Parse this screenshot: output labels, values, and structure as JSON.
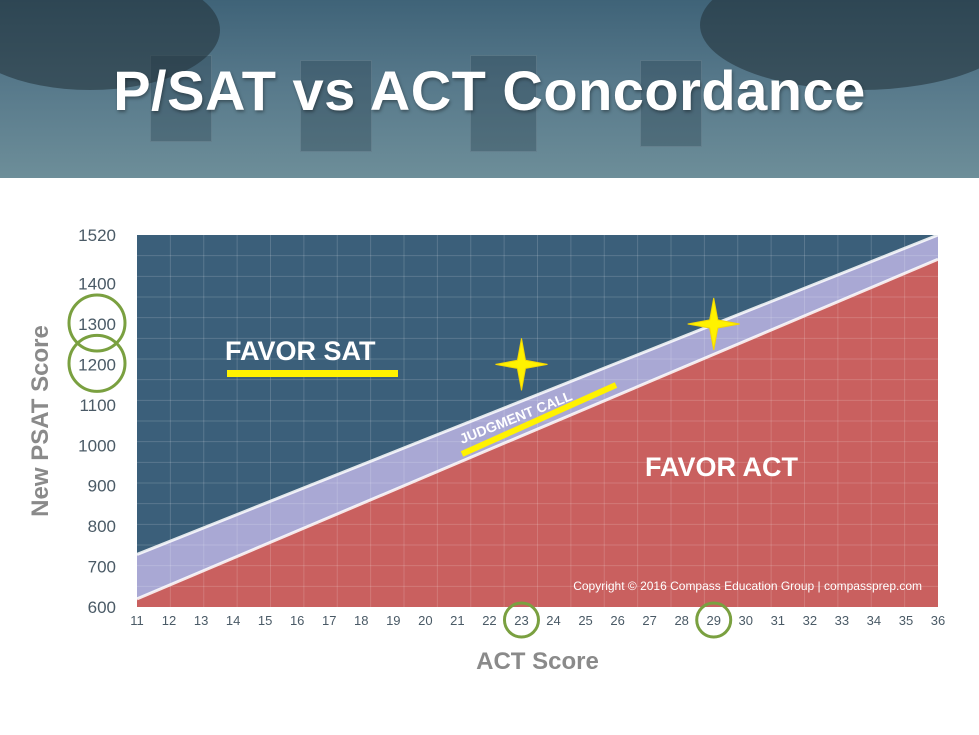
{
  "slide": {
    "title": "P/SAT vs ACT Concordance"
  },
  "chart_data": {
    "type": "area",
    "xlabel": "ACT Score",
    "ylabel": "New PSAT Score",
    "x_ticks": [
      11,
      12,
      13,
      14,
      15,
      16,
      17,
      18,
      19,
      20,
      21,
      22,
      23,
      24,
      25,
      26,
      27,
      28,
      29,
      30,
      31,
      32,
      33,
      34,
      35,
      36
    ],
    "y_ticks": [
      600,
      700,
      800,
      900,
      1000,
      1100,
      1200,
      1300,
      1400,
      1520
    ],
    "xlim": [
      11,
      36
    ],
    "ylim": [
      600,
      1520
    ],
    "grid": true,
    "regions": [
      {
        "name": "FAVOR SAT",
        "color": "#3b5f7a"
      },
      {
        "name": "JUDGMENT CALL",
        "color": "#a9a8d4"
      },
      {
        "name": "FAVOR ACT",
        "color": "#c9605f"
      }
    ],
    "boundaries": {
      "upper_band_edge": {
        "x": [
          11,
          36
        ],
        "y": [
          730,
          1520
        ]
      },
      "lower_band_edge": {
        "x": [
          11,
          36
        ],
        "y": [
          620,
          1460
        ]
      }
    },
    "highlighted_points": [
      {
        "x": 23,
        "y": 1200
      },
      {
        "x": 29,
        "y": 1300
      }
    ],
    "highlighted_x": [
      23,
      29
    ],
    "highlighted_y": [
      1200,
      1300
    ],
    "annotation": "Copyright © 2016 Compass Education Group | compassprep.com",
    "colors": {
      "highlight": "#fff200",
      "circle": "#7aa040"
    }
  }
}
